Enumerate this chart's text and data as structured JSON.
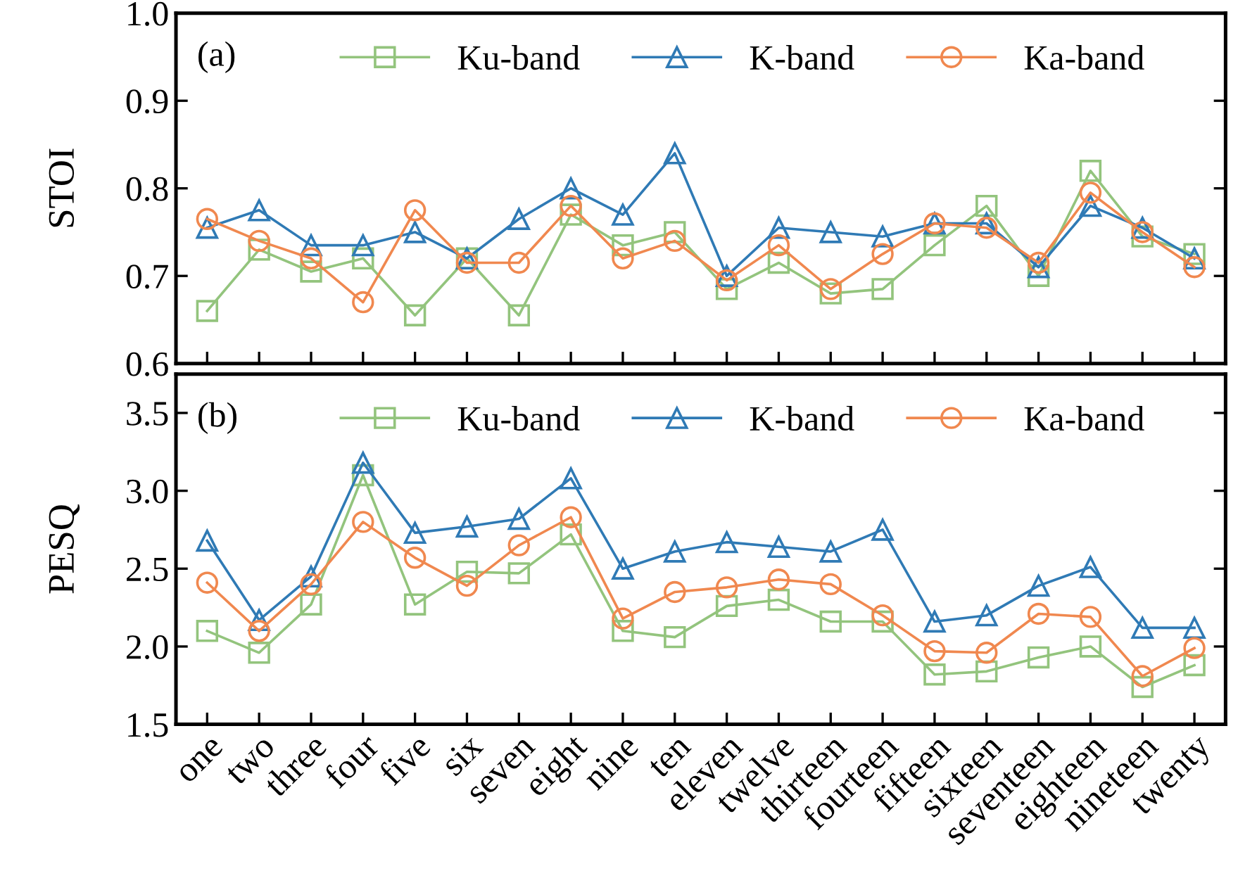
{
  "chart_data": [
    {
      "type": "line",
      "ylabel": "STOI",
      "annotations": [
        "(a)"
      ],
      "categories": [
        null,
        null,
        null,
        null,
        null,
        null,
        null,
        null,
        null,
        null,
        null,
        null,
        null,
        null,
        null,
        null,
        null,
        null,
        null,
        null
      ],
      "ylim": [
        0.6,
        1.0
      ],
      "yticks": [
        0.6,
        0.7,
        0.8,
        0.9,
        {
          "value": 1,
          "label": "1.0"
        }
      ],
      "legend": "top",
      "grid": false,
      "series": [
        {
          "name": "Ku-band",
          "color": "#93c47d",
          "marker": "square",
          "values": [
            0.66,
            0.73,
            0.705,
            0.72,
            0.655,
            0.72,
            0.655,
            0.77,
            0.735,
            0.75,
            0.685,
            0.715,
            0.68,
            0.685,
            0.735,
            0.78,
            0.7,
            0.82,
            0.745,
            0.725
          ]
        },
        {
          "name": "K-band",
          "color": "#2f7ab5",
          "marker": "triangle",
          "values": [
            0.755,
            0.775,
            0.735,
            0.735,
            0.75,
            0.72,
            0.765,
            0.8,
            0.77,
            0.84,
            0.7,
            0.755,
            0.75,
            0.745,
            0.76,
            0.76,
            0.71,
            0.78,
            0.755,
            0.72
          ]
        },
        {
          "name": "Ka-band",
          "color": "#f0884f",
          "marker": "circle",
          "values": [
            0.765,
            0.74,
            0.72,
            0.67,
            0.775,
            0.715,
            0.715,
            0.78,
            0.72,
            0.74,
            0.695,
            0.735,
            0.685,
            0.725,
            0.76,
            0.755,
            0.715,
            0.795,
            0.75,
            0.71
          ]
        }
      ]
    },
    {
      "type": "line",
      "ylabel": "PESQ",
      "annotations": [
        "(b)"
      ],
      "categories": [
        "one",
        "two",
        "three",
        "four",
        "five",
        "six",
        "seven",
        "eight",
        "nine",
        "ten",
        "eleven",
        "twelve",
        "thirteen",
        "fourteen",
        "fifteen",
        "sixteen",
        "seventeen",
        "eighteen",
        "nineteen",
        "twenty"
      ],
      "ylim": [
        1.5,
        3.75
      ],
      "yticks": [
        1.5,
        {
          "value": 2,
          "label": "2.0"
        },
        2.5,
        {
          "value": 3,
          "label": "3.0"
        },
        3.5
      ],
      "legend": "top",
      "grid": false,
      "series": [
        {
          "name": "Ku-band",
          "color": "#93c47d",
          "marker": "square",
          "values": [
            2.1,
            1.96,
            2.27,
            3.1,
            2.27,
            2.48,
            2.47,
            2.72,
            2.1,
            2.06,
            2.26,
            2.3,
            2.16,
            2.16,
            1.82,
            1.84,
            1.93,
            2.0,
            1.74,
            1.88
          ]
        },
        {
          "name": "K-band",
          "color": "#2f7ab5",
          "marker": "triangle",
          "values": [
            2.68,
            2.17,
            2.45,
            3.18,
            2.73,
            2.77,
            2.82,
            3.08,
            2.5,
            2.61,
            2.67,
            2.64,
            2.61,
            2.75,
            2.16,
            2.2,
            2.39,
            2.51,
            2.12,
            2.12
          ]
        },
        {
          "name": "Ka-band",
          "color": "#f0884f",
          "marker": "circle",
          "values": [
            2.41,
            2.1,
            2.4,
            2.8,
            2.57,
            2.39,
            2.65,
            2.83,
            2.18,
            2.35,
            2.38,
            2.43,
            2.4,
            2.2,
            1.97,
            1.96,
            2.21,
            2.19,
            1.81,
            1.99
          ]
        }
      ]
    }
  ]
}
